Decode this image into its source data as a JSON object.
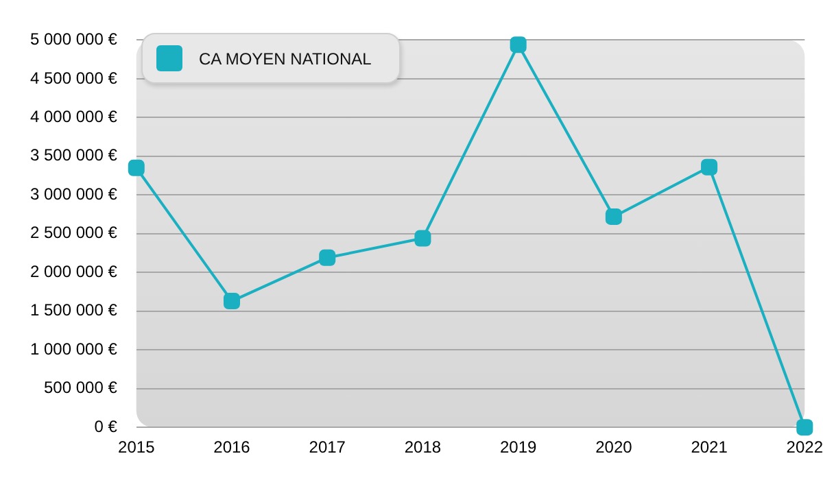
{
  "chart_data": {
    "type": "line",
    "categories": [
      "2015",
      "2016",
      "2017",
      "2018",
      "2019",
      "2020",
      "2021",
      "2022"
    ],
    "series": [
      {
        "name": "CA MOYEN NATIONAL",
        "color": "#1ab0c2",
        "values": [
          3350000,
          1630000,
          2190000,
          2440000,
          4940000,
          2720000,
          3360000,
          0
        ]
      }
    ],
    "ylim": [
      0,
      5000000
    ],
    "yticks": [
      {
        "value": 0,
        "label": "0 €"
      },
      {
        "value": 500000,
        "label": "500 000 €"
      },
      {
        "value": 1000000,
        "label": "1 000 000 €"
      },
      {
        "value": 1500000,
        "label": "1 500 000 €"
      },
      {
        "value": 2000000,
        "label": "2 000 000 €"
      },
      {
        "value": 2500000,
        "label": "2 500 000 €"
      },
      {
        "value": 3000000,
        "label": "3 000 000 €"
      },
      {
        "value": 3500000,
        "label": "3 500 000 €"
      },
      {
        "value": 4000000,
        "label": "4 000 000 €"
      },
      {
        "value": 4500000,
        "label": "4 500 000 €"
      },
      {
        "value": 5000000,
        "label": "5 000 000 €"
      }
    ],
    "grid": "y",
    "legend": "top left",
    "marker": "square",
    "line_style": "solid"
  }
}
